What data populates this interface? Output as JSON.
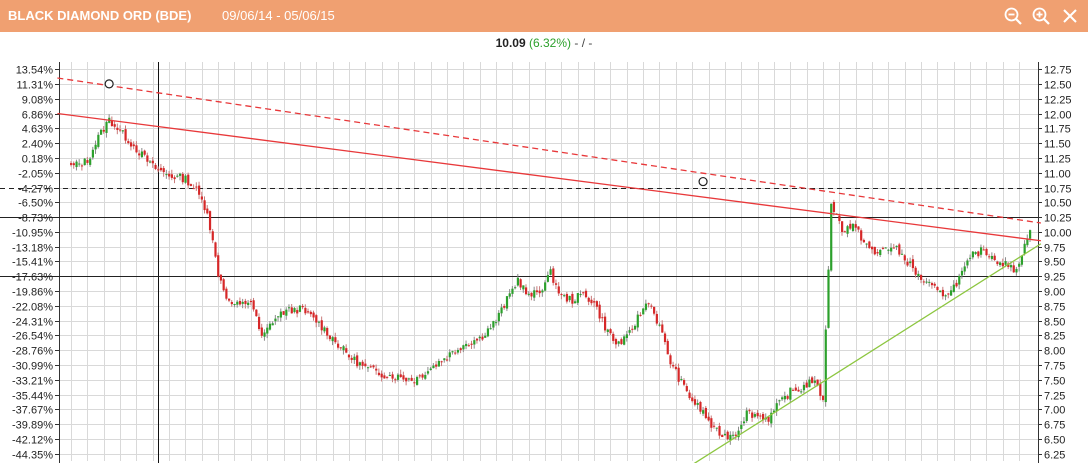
{
  "header": {
    "title": "BLACK DIAMOND ORD (BDE)",
    "date_range": "09/06/14 - 05/06/15",
    "zoom_out_icon": "zoom-out-icon",
    "zoom_in_icon": "zoom-in-icon"
  },
  "quote": {
    "last": "10.09",
    "change": "(6.32%)",
    "extra": "- / -"
  },
  "colors": {
    "header_bg": "#f0a071",
    "up_candle": "#2ca02c",
    "down_candle": "#d62728",
    "trendline_red": "#e8383a",
    "trendline_green": "#8cc63f",
    "grid": "#d9d9d9"
  },
  "chart_data": {
    "type": "candlestick",
    "y_left_labels": [
      "13.54%",
      "11.31%",
      "9.08%",
      "6.86%",
      "4.63%",
      "2.40%",
      "0.18%",
      "-2.05%",
      "-4.27%",
      "-6.50%",
      "-8.73%",
      "-10.95%",
      "-13.18%",
      "-15.41%",
      "-17.63%",
      "-19.86%",
      "-22.08%",
      "-24.31%",
      "-26.54%",
      "-28.76%",
      "-30.99%",
      "-33.21%",
      "-35.44%",
      "-37.67%",
      "-39.89%",
      "-42.12%",
      "-44.35%"
    ],
    "y_right_labels": [
      "12.75",
      "12.50",
      "12.25",
      "12.00",
      "11.75",
      "11.50",
      "11.25",
      "11.00",
      "10.75",
      "10.50",
      "10.25",
      "10.00",
      "9.75",
      "9.50",
      "9.25",
      "9.00",
      "8.75",
      "8.50",
      "8.25",
      "8.00",
      "7.75",
      "7.50",
      "7.25",
      "7.00",
      "6.75",
      "6.50",
      "6.25"
    ],
    "ylim": [
      6.13,
      12.87
    ],
    "horizontal_lines": [
      {
        "price": 10.75,
        "style": "dashed"
      },
      {
        "price": 10.25,
        "style": "solid"
      },
      {
        "price": 9.25,
        "style": "solid"
      }
    ],
    "close_path": [
      [
        0,
        11.1
      ],
      [
        6,
        11.2
      ],
      [
        10,
        11.6
      ],
      [
        14,
        11.9
      ],
      [
        18,
        11.7
      ],
      [
        24,
        11.4
      ],
      [
        30,
        11.1
      ],
      [
        36,
        10.95
      ],
      [
        42,
        10.9
      ],
      [
        46,
        10.7
      ],
      [
        50,
        10.35
      ],
      [
        54,
        9.3
      ],
      [
        58,
        8.8
      ],
      [
        62,
        8.75
      ],
      [
        66,
        8.85
      ],
      [
        70,
        8.2
      ],
      [
        74,
        8.5
      ],
      [
        78,
        8.65
      ],
      [
        84,
        8.7
      ],
      [
        90,
        8.5
      ],
      [
        96,
        8.2
      ],
      [
        102,
        7.9
      ],
      [
        108,
        7.7
      ],
      [
        114,
        7.6
      ],
      [
        120,
        7.55
      ],
      [
        126,
        7.5
      ],
      [
        132,
        7.7
      ],
      [
        138,
        7.9
      ],
      [
        144,
        8.1
      ],
      [
        150,
        8.2
      ],
      [
        156,
        8.5
      ],
      [
        160,
        8.85
      ],
      [
        164,
        9.2
      ],
      [
        168,
        8.9
      ],
      [
        172,
        9.0
      ],
      [
        176,
        9.3
      ],
      [
        180,
        8.9
      ],
      [
        184,
        8.85
      ],
      [
        188,
        8.95
      ],
      [
        192,
        8.8
      ],
      [
        196,
        8.4
      ],
      [
        200,
        8.1
      ],
      [
        204,
        8.2
      ],
      [
        208,
        8.55
      ],
      [
        212,
        8.85
      ],
      [
        216,
        8.4
      ],
      [
        220,
        7.8
      ],
      [
        224,
        7.45
      ],
      [
        228,
        7.15
      ],
      [
        232,
        6.95
      ],
      [
        236,
        6.65
      ],
      [
        240,
        6.55
      ],
      [
        244,
        6.6
      ],
      [
        248,
        6.95
      ],
      [
        252,
        6.9
      ],
      [
        256,
        6.85
      ],
      [
        260,
        7.1
      ],
      [
        264,
        7.3
      ],
      [
        268,
        7.35
      ],
      [
        272,
        7.5
      ],
      [
        276,
        7.2
      ],
      [
        279,
        10.5
      ],
      [
        283,
        10.05
      ],
      [
        287,
        10.1
      ],
      [
        291,
        9.85
      ],
      [
        295,
        9.6
      ],
      [
        299,
        9.75
      ],
      [
        303,
        9.7
      ],
      [
        307,
        9.5
      ],
      [
        311,
        9.25
      ],
      [
        315,
        9.1
      ],
      [
        319,
        8.95
      ],
      [
        323,
        9.0
      ],
      [
        327,
        9.3
      ],
      [
        331,
        9.6
      ],
      [
        335,
        9.7
      ],
      [
        339,
        9.55
      ],
      [
        343,
        9.45
      ],
      [
        346,
        9.35
      ],
      [
        349,
        9.6
      ],
      [
        352,
        10.09
      ]
    ],
    "points": 353,
    "trendlines": [
      {
        "kind": "resistance",
        "style": "solid",
        "from": [
          -5,
          12.0
        ],
        "to": [
          356,
          9.85
        ]
      },
      {
        "kind": "resistance",
        "style": "dashed",
        "from": [
          -5,
          12.6
        ],
        "to": [
          356,
          10.15
        ]
      },
      {
        "kind": "support",
        "style": "solid",
        "from": [
          224,
          5.95
        ],
        "to": [
          356,
          9.8
        ]
      }
    ],
    "markers": [
      {
        "index": 14,
        "price": 12.5
      },
      {
        "index": 232,
        "price": 10.85
      }
    ]
  }
}
